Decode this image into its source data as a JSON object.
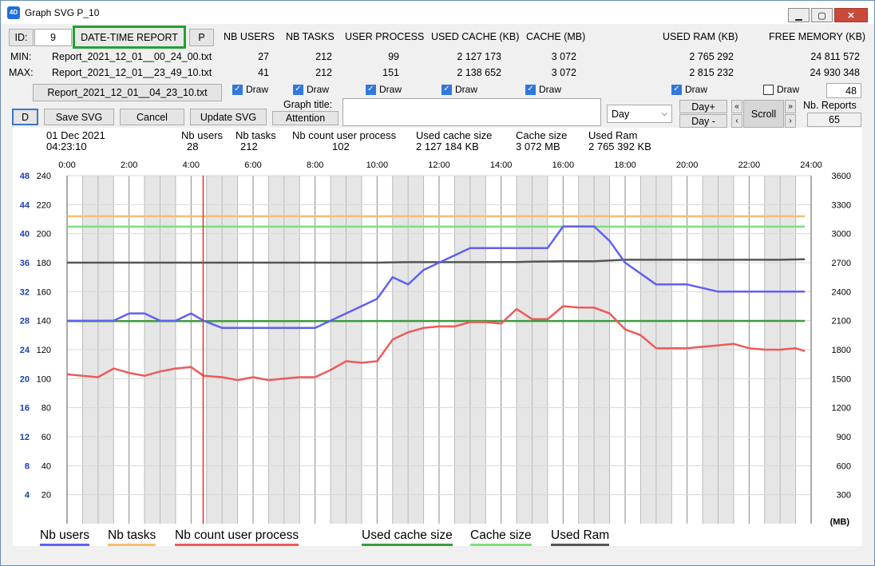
{
  "window": {
    "title": "Graph SVG  P_10",
    "icon": "4D"
  },
  "header": {
    "id_label": "ID:",
    "id_value": "9",
    "report_button": "DATE-TIME REPORT",
    "p_button": "P",
    "columns": [
      "NB USERS",
      "NB TASKS",
      "USER PROCESS",
      "USED CACHE (KB)",
      "CACHE (MB)",
      "USED RAM (KB)",
      "FREE MEMORY (KB)"
    ]
  },
  "min_row": {
    "label": "MIN:",
    "file": "Report_2021_12_01__00_24_00.txt",
    "values": [
      "27",
      "212",
      "99",
      "2 127 173",
      "3 072",
      "2 765 292",
      "24 811 572"
    ]
  },
  "max_row": {
    "label": "MAX:",
    "file": "Report_2021_12_01__23_49_10.txt",
    "values": [
      "41",
      "212",
      "151",
      "2 138 652",
      "3 072",
      "2 815 232",
      "24 930 348"
    ]
  },
  "current_file": "Report_2021_12_01__04_23_10.txt",
  "draw_label": "Draw",
  "draw_checked": [
    true,
    true,
    true,
    true,
    true,
    true,
    false
  ],
  "draw_count": "48",
  "buttons": {
    "d": "D",
    "save_svg": "Save SVG",
    "cancel": "Cancel",
    "update_svg": "Update SVG",
    "attention": "Attention",
    "day_plus": "Day+",
    "day_minus": "Day -",
    "scroll": "Scroll"
  },
  "graph_title": {
    "label": "Graph title:",
    "value": ""
  },
  "period_select": "Day",
  "nb_reports": {
    "label": "Nb. Reports",
    "value": "65"
  },
  "info": {
    "date": "01 Dec 2021",
    "time": "04:23:10",
    "items": [
      {
        "label": "Nb users",
        "value": "28"
      },
      {
        "label": "Nb tasks",
        "value": "212"
      },
      {
        "label": "Nb count user process",
        "value": "102"
      },
      {
        "label": "Used cache size",
        "value": "2 127 184 KB"
      },
      {
        "label": "Cache size",
        "value": "3 072 MB"
      },
      {
        "label": "Used Ram",
        "value": "2 765 392 KB"
      }
    ]
  },
  "colors": {
    "users": "#6060f0",
    "tasks": "#f5c070",
    "process": "#ee5a5a",
    "used_cache": "#3f9a3f",
    "cache": "#7ee07e",
    "ram": "#555555",
    "cursor": "#e03030",
    "band": "#e6e6e6",
    "left_axis": "#1b3fb0"
  },
  "chart_data": {
    "type": "line",
    "x_unit": "hours",
    "xlim": [
      0,
      24
    ],
    "x_ticks": [
      "0:00",
      "2:00",
      "4:00",
      "6:00",
      "8:00",
      "10:00",
      "12:00",
      "14:00",
      "16:00",
      "18:00",
      "20:00",
      "22:00",
      "24:00"
    ],
    "y_left_users_ticks": [
      "48",
      "44",
      "40",
      "36",
      "32",
      "28",
      "24",
      "20",
      "16",
      "12",
      "8",
      "4"
    ],
    "y_left_ticks": [
      "240",
      "220",
      "200",
      "180",
      "160",
      "140",
      "120",
      "100",
      "80",
      "60",
      "40",
      "20"
    ],
    "y_right_ticks": [
      "3600",
      "3300",
      "3000",
      "2700",
      "2400",
      "2100",
      "1800",
      "1500",
      "1200",
      "900",
      "600",
      "300"
    ],
    "y_right_unit": "(MB)",
    "y_left_range": [
      0,
      240
    ],
    "y_users_range": [
      0,
      48
    ],
    "y_right_range": [
      0,
      3600
    ],
    "cursor_time": "04:23:10",
    "cursor_x": 4.39,
    "series": [
      {
        "name": "Nb users",
        "color_key": "users",
        "axis": "users",
        "x": [
          0,
          1,
          1.5,
          2,
          2.5,
          3,
          3.5,
          4,
          4.4,
          5,
          6,
          7,
          8,
          9,
          10,
          10.5,
          11,
          11.5,
          12,
          13,
          14,
          15,
          15.5,
          16,
          17,
          17.5,
          18,
          19,
          20,
          21,
          22,
          23,
          23.8
        ],
        "y": [
          28,
          28,
          28,
          29,
          29,
          28,
          28,
          29,
          28,
          27,
          27,
          27,
          27,
          29,
          31,
          34,
          33,
          35,
          36,
          38,
          38,
          38,
          38,
          41,
          41,
          39,
          36,
          33,
          33,
          32,
          32,
          32,
          32
        ]
      },
      {
        "name": "Nb tasks",
        "color_key": "tasks",
        "axis": "left",
        "x": [
          0,
          23.8
        ],
        "y": [
          212,
          212
        ]
      },
      {
        "name": "Nb count user process",
        "color_key": "process",
        "axis": "left",
        "x": [
          0,
          0.5,
          1,
          1.5,
          2,
          2.5,
          3,
          3.5,
          4,
          4.4,
          5,
          5.5,
          6,
          6.5,
          7,
          7.5,
          8,
          8.5,
          9,
          9.5,
          10,
          10.5,
          11,
          11.5,
          12,
          12.5,
          13,
          13.5,
          14,
          14.5,
          15,
          15.5,
          16,
          16.5,
          17,
          17.5,
          18,
          18.5,
          19,
          19.5,
          20,
          20.5,
          21,
          21.5,
          22,
          22.5,
          23,
          23.5,
          23.8
        ],
        "y": [
          103,
          102,
          101,
          107,
          104,
          102,
          105,
          107,
          108,
          102,
          101,
          99,
          101,
          99,
          100,
          101,
          101,
          106,
          112,
          111,
          112,
          127,
          132,
          135,
          136,
          136,
          139,
          139,
          138,
          148,
          141,
          141,
          150,
          149,
          149,
          145,
          134,
          130,
          121,
          121,
          121,
          122,
          123,
          124,
          121,
          120,
          120,
          121,
          119
        ]
      },
      {
        "name": "Used cache size",
        "color_key": "used_cache",
        "axis": "right",
        "x": [
          0,
          23.8
        ],
        "y": [
          2095,
          2097
        ]
      },
      {
        "name": "Cache size",
        "color_key": "cache",
        "axis": "right",
        "x": [
          0,
          23.8
        ],
        "y": [
          3072,
          3072
        ]
      },
      {
        "name": "Used Ram",
        "color_key": "ram",
        "axis": "right",
        "x": [
          0,
          6,
          10,
          11,
          13,
          14.5,
          15,
          16,
          17,
          18,
          20,
          22,
          23,
          23.8
        ],
        "y": [
          2700,
          2700,
          2700,
          2705,
          2705,
          2707,
          2710,
          2715,
          2715,
          2730,
          2730,
          2730,
          2730,
          2735
        ]
      }
    ]
  }
}
